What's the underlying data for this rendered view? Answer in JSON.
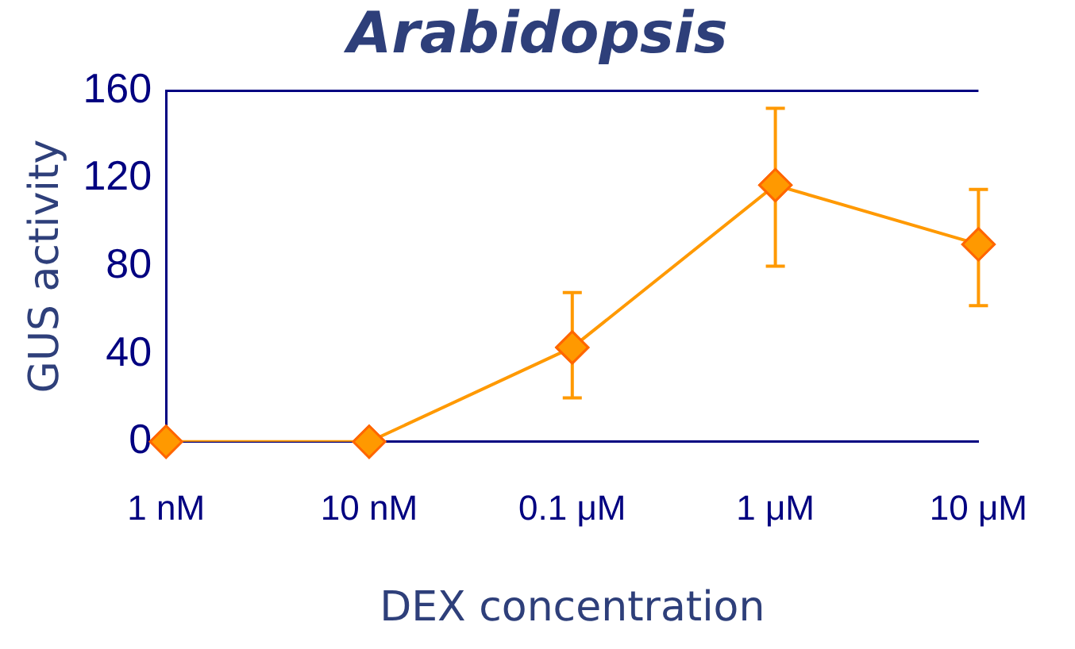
{
  "chart_data": {
    "type": "line",
    "title": "Arabidopsis",
    "xlabel": "DEX concentration",
    "ylabel": "GUS activity",
    "categories": [
      "1 nM",
      "10 nM",
      "0.1 μM",
      "1 μM",
      "10 μM"
    ],
    "series": [
      {
        "color": "#ff9900",
        "values": [
          0,
          0,
          43,
          117,
          90
        ],
        "errors": [
          null,
          null,
          [
            20,
            68
          ],
          [
            80,
            152
          ],
          [
            62,
            115
          ]
        ]
      }
    ],
    "ylim": [
      0,
      160
    ],
    "yticks": [
      0,
      40,
      80,
      120,
      160
    ],
    "grid": false,
    "legend": false,
    "marker": "diamond",
    "line_style": "solid"
  }
}
